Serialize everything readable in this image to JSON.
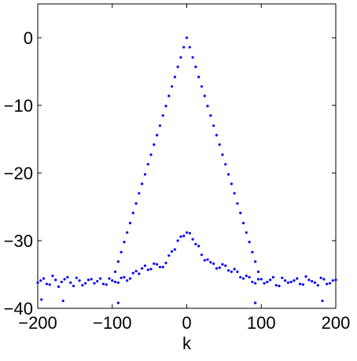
{
  "chart_data": {
    "type": "scatter",
    "xlabel": "k",
    "xlim": [
      -200,
      200
    ],
    "ylim": [
      -40,
      5
    ],
    "xticks": [
      {
        "value": -200,
        "label": "−200"
      },
      {
        "value": -100,
        "label": "−100"
      },
      0,
      100,
      200
    ],
    "yticks": [
      {
        "value": -40,
        "label": "−40"
      },
      {
        "value": -30,
        "label": "−30"
      },
      {
        "value": -20,
        "label": "−20"
      },
      {
        "value": -10,
        "label": "−10"
      },
      0
    ],
    "series": [
      {
        "color": "#0000ff",
        "x": [
          -96,
          -92,
          -88,
          -84,
          -80,
          -76,
          -72,
          -68,
          -64,
          -60,
          -56,
          -52,
          -48,
          -44,
          -40,
          -36,
          -32,
          -28,
          -24,
          -20,
          -16,
          -12,
          -8,
          -4,
          0,
          4,
          8,
          12,
          16,
          20,
          24,
          28,
          32,
          36,
          40,
          44,
          48,
          52,
          56,
          60,
          64,
          68,
          72,
          76,
          80,
          84,
          88,
          92,
          96
        ],
        "values": [
          -34.6,
          -33.1,
          -31.7,
          -30.2,
          -28.8,
          -27.4,
          -25.9,
          -24.5,
          -23.0,
          -21.6,
          -20.2,
          -18.7,
          -17.3,
          -15.8,
          -14.4,
          -13.0,
          -11.5,
          -10.1,
          -8.6,
          -7.2,
          -5.8,
          -4.3,
          -2.9,
          -1.4,
          0,
          -1.4,
          -2.9,
          -4.3,
          -5.8,
          -7.2,
          -8.6,
          -10.1,
          -11.5,
          -13.0,
          -14.4,
          -15.8,
          -17.3,
          -18.7,
          -20.2,
          -21.6,
          -23.0,
          -24.5,
          -25.9,
          -27.4,
          -28.8,
          -30.2,
          -31.7,
          -33.1,
          -34.6
        ]
      },
      {
        "color": "#0000ff",
        "x": [
          -200,
          -192,
          -184,
          -176,
          -168,
          -160,
          -152,
          -144,
          -136,
          -128,
          -120,
          -112,
          -104,
          -96,
          -88,
          -80,
          -72,
          -64,
          -56,
          -48,
          -40,
          -32,
          -24,
          -16,
          -8,
          0,
          8,
          16,
          24,
          32,
          40,
          48,
          56,
          64,
          72,
          80,
          88,
          96,
          104,
          112,
          120,
          128,
          136,
          144,
          152,
          160,
          168,
          176,
          184,
          192,
          200
        ],
        "values": [
          -36.2,
          -35.6,
          -36.5,
          -35.8,
          -36.1,
          -35.4,
          -36.7,
          -35.9,
          -36.3,
          -35.7,
          -36.0,
          -36.4,
          -35.6,
          -36.1,
          -35.5,
          -35.9,
          -34.8,
          -34.9,
          -33.7,
          -34.2,
          -33.5,
          -33.9,
          -32.2,
          -31.3,
          -29.4,
          -28.8,
          -29.8,
          -30.8,
          -32.9,
          -33.2,
          -34.1,
          -33.5,
          -34.4,
          -34.2,
          -35.4,
          -35.2,
          -36.1,
          -35.7,
          -36.3,
          -35.8,
          -36.6,
          -35.5,
          -36.2,
          -35.9,
          -36.4,
          -35.3,
          -36.0,
          -36.6,
          -35.7,
          -36.3,
          -35.8
        ]
      },
      {
        "color": "#0000ff",
        "x": [
          -196,
          -188,
          -180,
          -172,
          -164,
          -156,
          -148,
          -140,
          -132,
          -124,
          -116,
          -108,
          -100,
          -92,
          -84,
          -76,
          -68,
          -60,
          -52,
          -44,
          -36,
          -28,
          -20,
          -12,
          -4,
          4,
          12,
          20,
          28,
          36,
          44,
          52,
          60,
          68,
          76,
          84,
          92,
          100,
          108,
          116,
          124,
          132,
          140,
          148,
          156,
          164,
          172,
          180,
          188,
          196
        ],
        "values": [
          -35.9,
          -36.4,
          -35.2,
          -36.8,
          -35.7,
          -36.2,
          -35.5,
          -36.6,
          -35.8,
          -36.3,
          -35.6,
          -36.5,
          -35.9,
          -36.2,
          -35.4,
          -35.6,
          -34.5,
          -34.1,
          -34.3,
          -33.4,
          -33.9,
          -33.3,
          -31.6,
          -30.0,
          -29.3,
          -28.9,
          -30.5,
          -32.1,
          -32.8,
          -33.4,
          -34.0,
          -33.7,
          -34.6,
          -34.6,
          -35.6,
          -35.4,
          -36.3,
          -35.7,
          -36.1,
          -35.4,
          -36.7,
          -35.9,
          -36.1,
          -35.6,
          -36.5,
          -35.8,
          -36.2,
          -35.5,
          -36.4,
          -35.9
        ]
      },
      {
        "color": "#0000ff",
        "x": [
          -195,
          -166,
          -92,
          92,
          182
        ],
        "values": [
          -38.7,
          -38.9,
          -39.2,
          -39.2,
          -38.9
        ]
      }
    ]
  }
}
